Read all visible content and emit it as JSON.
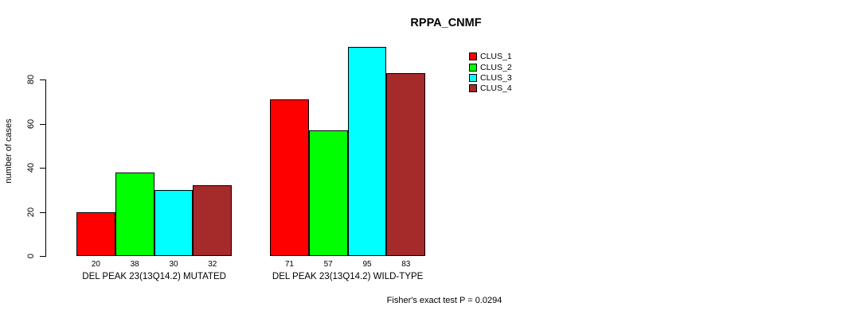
{
  "chart_data": {
    "type": "bar",
    "title": "RPPA_CNMF",
    "ylabel": "number of cases",
    "xlabel": "",
    "yticks": [
      0,
      20,
      40,
      60,
      80
    ],
    "ylim": [
      0,
      95
    ],
    "grid": false,
    "legend_position": "top-right",
    "categories": [
      "DEL PEAK 23(13Q14.2) MUTATED",
      "DEL PEAK 23(13Q14.2) WILD-TYPE"
    ],
    "series": [
      {
        "name": "CLUS_1",
        "color": "#ff0000",
        "values": [
          20,
          71
        ]
      },
      {
        "name": "CLUS_2",
        "color": "#00ff00",
        "values": [
          38,
          57
        ]
      },
      {
        "name": "CLUS_3",
        "color": "#00ffff",
        "values": [
          30,
          95
        ]
      },
      {
        "name": "CLUS_4",
        "color": "#a52a2a",
        "values": [
          32,
          83
        ]
      }
    ],
    "bar_value_labels_shown": true,
    "annotation": "Fisher's exact test P = 0.0294"
  },
  "colors": {
    "background": "#ffffff",
    "axis": "#000000",
    "text": "#000000",
    "bar_border": "#000000"
  }
}
